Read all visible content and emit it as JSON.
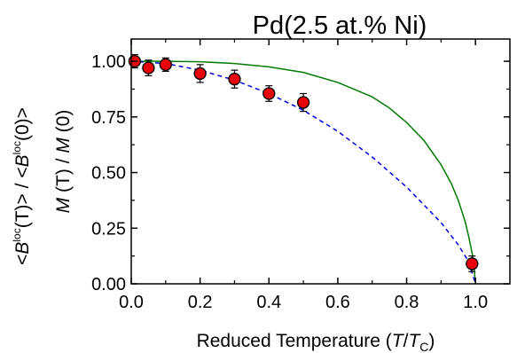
{
  "chart_data": {
    "type": "scatter",
    "title": "Pd(2.5 at.% Ni)",
    "xlabel": {
      "main": "Reduced Temperature (",
      "t": "T",
      "slash": "/",
      "tc": "T",
      "sub": "C",
      "close": ")"
    },
    "ylabel_left": {
      "lt1": "<",
      "b1": "B",
      "sup1": "loc",
      "t1": "(T)",
      "mid": "> / <",
      "b2": "B",
      "sup2": "loc",
      "zero": "(0)",
      "gt": ">"
    },
    "ylabel_inner": {
      "m1": "M",
      "t1": " (T) / ",
      "m2": "M",
      "zero": " (0)"
    },
    "xlim": [
      0.0,
      1.1
    ],
    "ylim": [
      0.0,
      1.1
    ],
    "xticks": [
      "0.0",
      "0.2",
      "0.4",
      "0.6",
      "0.8",
      "1.0"
    ],
    "xtick_values": [
      0.0,
      0.2,
      0.4,
      0.6,
      0.8,
      1.0
    ],
    "yticks": [
      "0.00",
      "0.25",
      "0.50",
      "0.75",
      "1.00"
    ],
    "ytick_values": [
      0.0,
      0.25,
      0.5,
      0.75,
      1.0
    ],
    "series": [
      {
        "kind": "points",
        "color": "#e8000b",
        "x": [
          0.01,
          0.05,
          0.1,
          0.2,
          0.3,
          0.4,
          0.5,
          0.99
        ],
        "y": [
          1.0,
          0.97,
          0.985,
          0.945,
          0.92,
          0.855,
          0.815,
          0.09
        ],
        "err": [
          0.03,
          0.035,
          0.03,
          0.04,
          0.04,
          0.035,
          0.04,
          0.035
        ]
      },
      {
        "kind": "solid-curve",
        "color": "#007a00",
        "x": [
          0.0,
          0.1,
          0.2,
          0.3,
          0.4,
          0.5,
          0.6,
          0.7,
          0.75,
          0.8,
          0.85,
          0.9,
          0.93,
          0.95,
          0.97,
          0.98,
          0.99,
          0.995,
          1.0
        ],
        "y": [
          1.0,
          1.0,
          0.998,
          0.99,
          0.975,
          0.95,
          0.905,
          0.84,
          0.79,
          0.725,
          0.645,
          0.535,
          0.45,
          0.375,
          0.28,
          0.215,
          0.14,
          0.09,
          0.0
        ]
      },
      {
        "kind": "dashed-curve",
        "color": "#0000e0",
        "x": [
          0.0,
          0.1,
          0.2,
          0.3,
          0.4,
          0.5,
          0.6,
          0.7,
          0.8,
          0.9,
          0.95,
          0.98,
          1.0
        ],
        "y": [
          1.0,
          0.99,
          0.96,
          0.915,
          0.855,
          0.78,
          0.685,
          0.57,
          0.435,
          0.275,
          0.175,
          0.1,
          0.0
        ]
      }
    ]
  }
}
